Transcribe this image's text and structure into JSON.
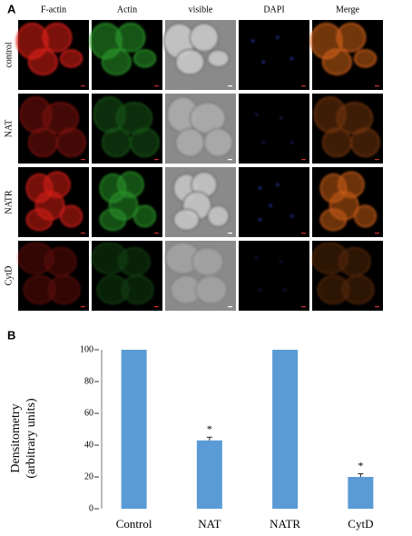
{
  "panel_a": {
    "label": "A",
    "columns": [
      "F-actin",
      "Actin",
      "visible",
      "DAPI",
      "Merge"
    ],
    "rows": [
      "control",
      "NAT",
      "NATR",
      "CytD"
    ]
  },
  "chart_data": {
    "type": "bar",
    "panel_label": "B",
    "y_label": [
      "Densitometry",
      "(arbitrary units)"
    ],
    "categories": [
      "Control",
      "NAT",
      "NATR",
      "CytD"
    ],
    "values": [
      100,
      43,
      100,
      20
    ],
    "errors": [
      0,
      2,
      0,
      2
    ],
    "significance": [
      null,
      "*",
      null,
      "*"
    ],
    "color": "#5b9bd5",
    "ylim": [
      0,
      100
    ],
    "yticks": [
      0,
      20,
      40,
      60,
      80,
      100
    ],
    "grid": false
  }
}
